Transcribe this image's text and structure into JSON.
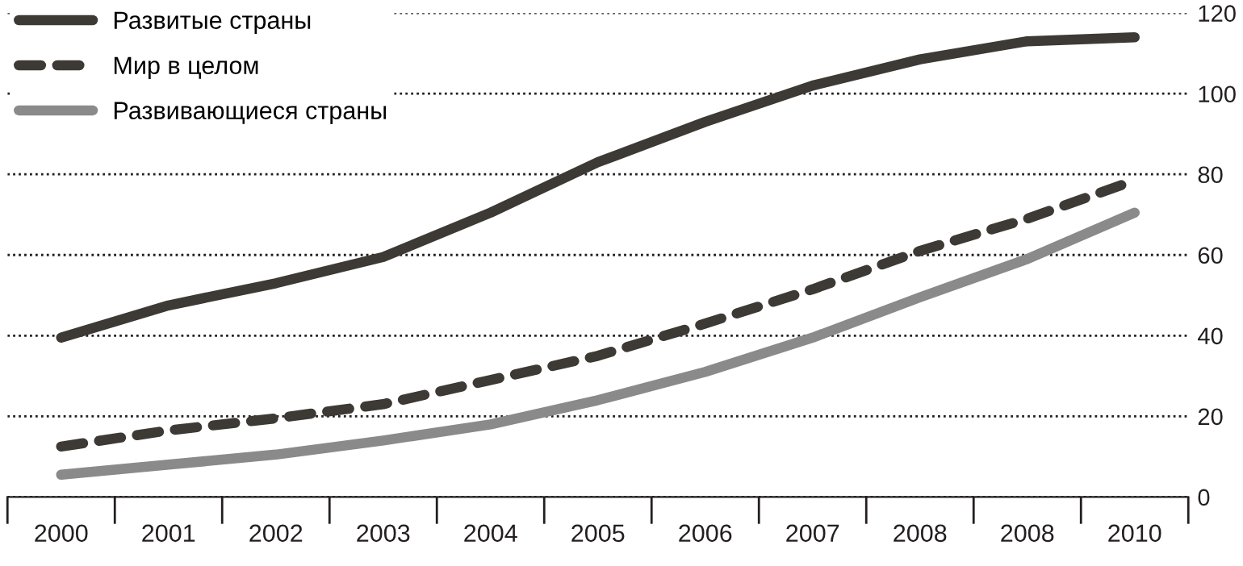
{
  "chart_data": {
    "type": "line",
    "categories": [
      "2000",
      "2001",
      "2002",
      "2003",
      "2004",
      "2005",
      "2006",
      "2007",
      "2008",
      "2008",
      "2010"
    ],
    "series": [
      {
        "name": "Развитые страны",
        "color": "#3d3935",
        "line_style": "solid",
        "values": [
          39.5,
          47.5,
          53,
          59.5,
          70.5,
          83,
          93,
          102,
          108.5,
          113,
          114
        ]
      },
      {
        "name": "Мир в целом",
        "color": "#3d3935",
        "line_style": "dashed",
        "values": [
          12.5,
          16.5,
          19.5,
          23,
          29,
          35,
          43,
          51.5,
          61,
          69,
          78.5
        ]
      },
      {
        "name": "Развивающиеся страны",
        "color": "#8a8a8a",
        "line_style": "solid",
        "values": [
          5.5,
          8,
          10.5,
          14,
          18,
          24,
          31,
          39.5,
          49.5,
          59,
          70.5
        ]
      }
    ],
    "ylim": [
      0,
      120
    ],
    "yticks": [
      0,
      20,
      40,
      60,
      80,
      100,
      120
    ],
    "grid": "y",
    "legend": "top left",
    "marker": "none"
  }
}
